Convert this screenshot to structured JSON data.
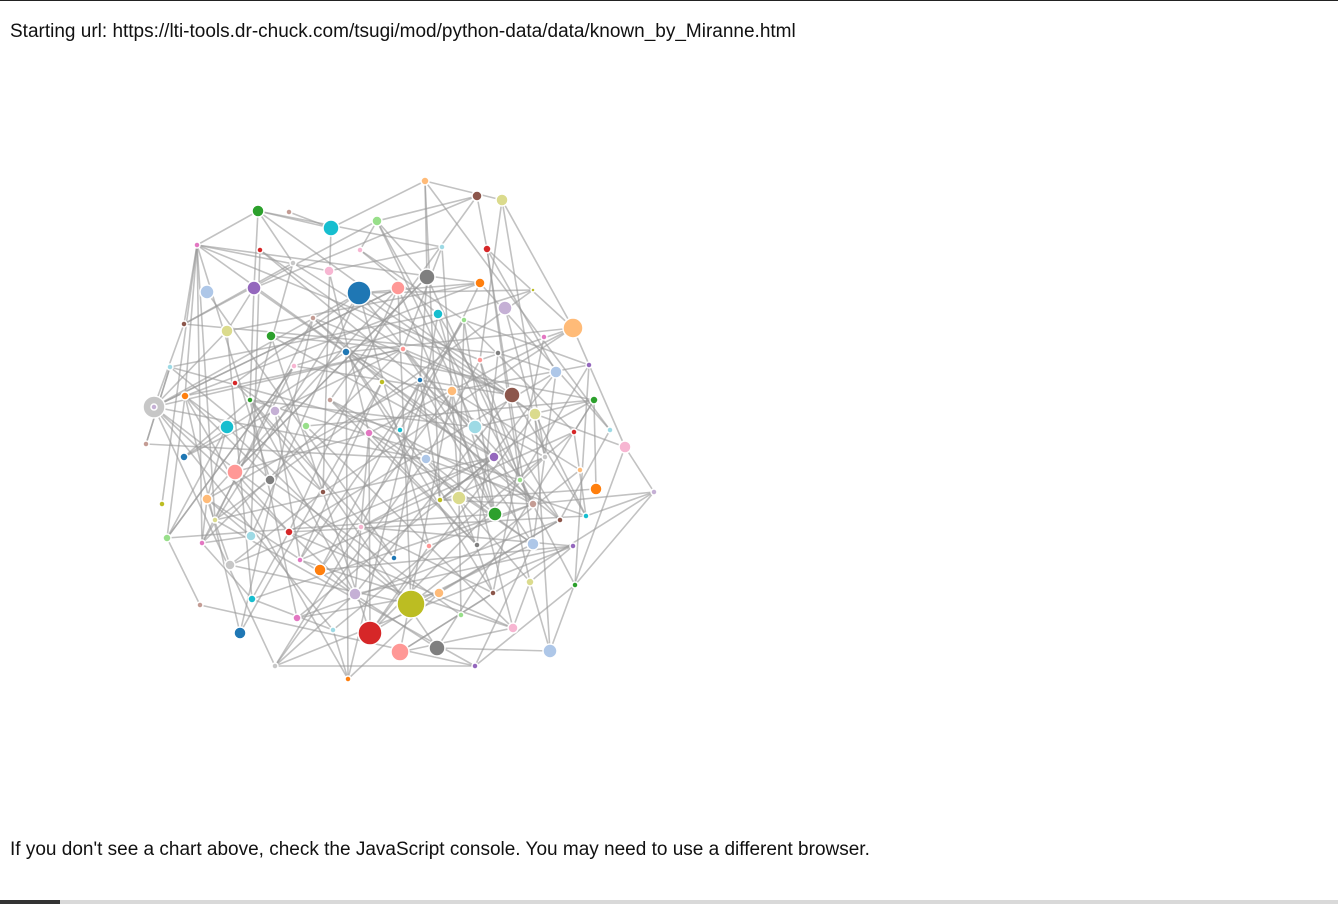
{
  "page": {
    "starting_url_label": "Starting url:",
    "starting_url": "https://lti-tools.dr-chuck.com/tsugi/mod/python-data/data/known_by_Miranne.html",
    "footer_note": "If you don't see a chart above, check the JavaScript console. You may need to use a different browser."
  },
  "network": {
    "type": "force-directed-graph",
    "edge_color": "#999999",
    "node_stroke": "#ffffff",
    "node_count": 113
  }
}
